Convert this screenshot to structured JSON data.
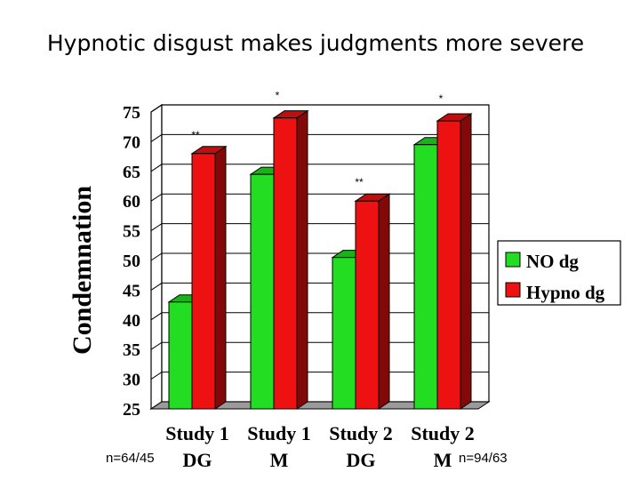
{
  "title": "Hypnotic disgust makes judgments more severe",
  "chart_data": {
    "type": "bar",
    "style": "3d-clustered",
    "categories": [
      [
        "Study 1",
        "DG"
      ],
      [
        "Study 1",
        "M"
      ],
      [
        "Study 2",
        "DG"
      ],
      [
        "Study 2",
        "M"
      ]
    ],
    "series": [
      {
        "name": "NO dg",
        "color": "#22dd22",
        "values": [
          43,
          64.5,
          50.5,
          69.5
        ]
      },
      {
        "name": "Hypno dg",
        "color": "#ee1111",
        "values": [
          68,
          74,
          60,
          73.5
        ]
      }
    ],
    "ylabel": "Condemnation",
    "ylim": [
      25,
      75
    ],
    "yticks": [
      25,
      30,
      35,
      40,
      45,
      50,
      55,
      60,
      65,
      70,
      75
    ],
    "grid": true,
    "legend": "right",
    "significance": [
      "**",
      "*",
      "**",
      "*"
    ],
    "sample_sizes": [
      "n=64/45",
      "n=94/63"
    ]
  }
}
